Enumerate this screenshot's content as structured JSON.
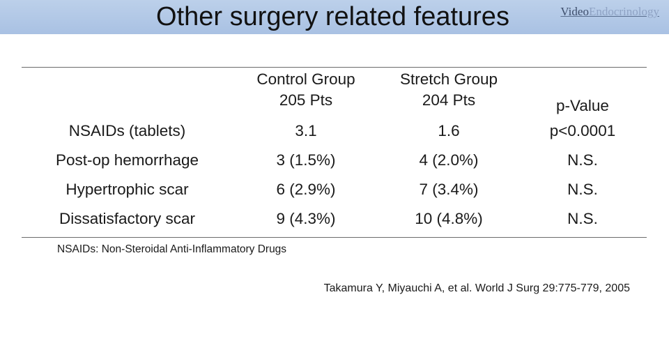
{
  "slide": {
    "title": "Other surgery related features",
    "brand_part1": "Video",
    "brand_part2": "Endocrinology"
  },
  "table": {
    "headers": [
      {
        "line1": "",
        "line2": ""
      },
      {
        "line1": "Control Group",
        "line2": "205 Pts"
      },
      {
        "line1": "Stretch Group",
        "line2": "204 Pts"
      },
      {
        "line1": "",
        "line2": "p-Value"
      }
    ],
    "rows": [
      [
        "NSAIDs (tablets)",
        "3.1",
        "1.6",
        "p<0.0001"
      ],
      [
        "Post-op hemorrhage",
        "3 (1.5%)",
        "4 (2.0%)",
        "N.S."
      ],
      [
        "Hypertrophic scar",
        "6 (2.9%)",
        "7 (3.4%)",
        "N.S."
      ],
      [
        "Dissatisfactory scar",
        "9 (4.3%)",
        "10 (4.8%)",
        "N.S."
      ]
    ]
  },
  "footnote": "NSAIDs: Non-Steroidal Anti-Inflammatory Drugs",
  "citation": "Takamura Y, Miyauchi A, et al. World J Surg 29:775-779, 2005",
  "colors": {
    "title_bar": "#aec4e5",
    "brand_dark": "#3d4d6b",
    "brand_light": "#8fa3c4"
  }
}
